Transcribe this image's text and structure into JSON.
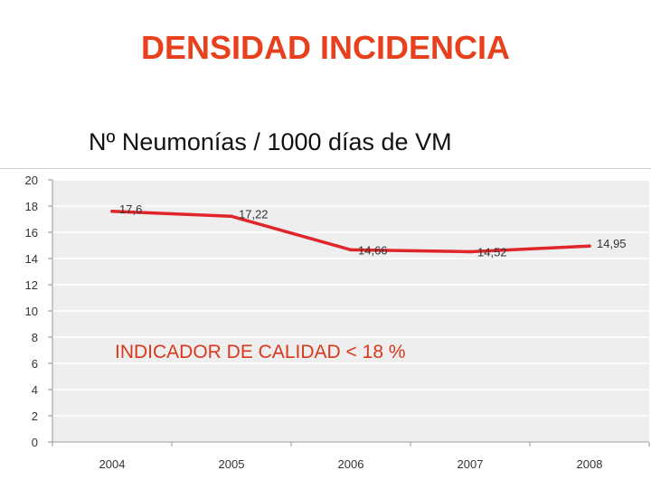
{
  "slide": {
    "title": "DENSIDAD INCIDENCIA",
    "subtitle": "Nº Neumonías / 1000 días de VM",
    "note": "INDICADOR DE CALIDAD < 18 %"
  },
  "colors": {
    "title": "#e8401c",
    "series": "#e0262b",
    "note": "#d9381e",
    "plot_bg": "#eeeeee",
    "grid": "#ffffff"
  },
  "chart_data": {
    "type": "line",
    "title": "",
    "xlabel": "",
    "ylabel": "",
    "categories": [
      "2004",
      "2005",
      "2006",
      "2007",
      "2008"
    ],
    "series": [
      {
        "name": "Nº Neumonías / 1000 días de VM",
        "values": [
          17.6,
          17.22,
          14.66,
          14.52,
          14.95
        ],
        "labels": [
          "17,6",
          "17,22",
          "14,66",
          "14,52",
          "14,95"
        ]
      }
    ],
    "ylim": [
      0,
      20
    ],
    "yticks": [
      0,
      2,
      4,
      6,
      8,
      10,
      12,
      14,
      16,
      18,
      20
    ],
    "grid": true
  }
}
